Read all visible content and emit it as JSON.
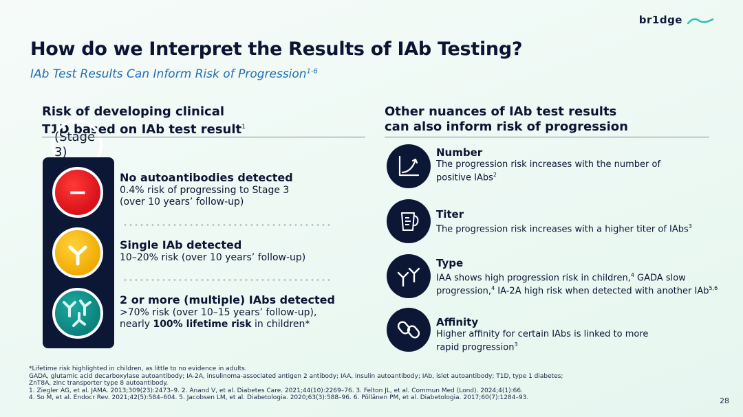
{
  "logo": {
    "text": "br1dge"
  },
  "title": "How do we Interpret the Results of IAb Testing?",
  "subtitle": {
    "text": "IAb Test Results Can Inform Risk of Progression",
    "sup": "1-6"
  },
  "left_heading": {
    "line1_bold": "Risk of developing clinical ",
    "line1_light": "(Stage 3)",
    "line2": "T1D based on IAb test result",
    "sup": "1"
  },
  "right_heading": {
    "line1": "Other nuances of IAb test results",
    "line2": "can also inform risk of progression"
  },
  "results": [
    {
      "title": "No autoantibodies detected",
      "line1": "0.4% risk of progressing to Stage 3",
      "line2": "(over 10 years’ follow-up)",
      "symbol": "−"
    },
    {
      "title": "Single IAb detected",
      "line1": "10–20% risk (over 10 years’ follow-up)"
    },
    {
      "title": "2 or more (multiple) IAbs detected",
      "line1": ">70% risk (over 10–15 years’ follow-up),",
      "line2_pre": "nearly ",
      "line2_bold": "100% lifetime risk",
      "line2_post": " in children*"
    }
  ],
  "nuances": [
    {
      "title": "Number",
      "line1": "The progression risk increases with the number of",
      "line2": "positive IAbs",
      "line2_sup": "2",
      "icon": "growth-chart-icon"
    },
    {
      "title": "Titer",
      "line1": "The progression risk increases with a higher titer of IAbs",
      "line1_sup": "3",
      "icon": "measuring-cup-icon"
    },
    {
      "title": "Type",
      "line1a": "IAA shows high progression risk in children,",
      "sup_a": "4",
      "line1b": " GADA slow",
      "line2a": "progression,",
      "sup_b": "4",
      "line2b": " IA-2A high risk when detected with another IAb",
      "sup_c": "5,6",
      "icon": "antibody-types-icon"
    },
    {
      "title": "Affinity",
      "line1": "Higher affinity for certain IAbs is linked to more",
      "line2": "rapid progression",
      "line2_sup": "3",
      "icon": "chain-link-icon"
    }
  ],
  "footnotes": [
    "*Lifetime risk highlighted in children, as little to no evidence in adults.",
    "GADA, glutamic acid decarboxylase autoantibody; IA-2A, insulinoma-associated antigen 2 antibody; IAA, insulin autoantibody; IAb, islet autoantibody; T1D, type 1 diabetes;",
    "ZnT8A, zinc transporter type 8 autoantibody.",
    "1. Ziegler AG, et al. JAMA. 2013;309(23):2473–9. 2. Anand V, et al. Diabetes Care. 2021;44(10):2269–76. 3. Felton JL, et al. Commun Med (Lond). 2024;4(1):66.",
    "4. So M, et al. Endocr Rev. 2021;42(5):584–604. 5. Jacobsen LM, et al. Diabetologia. 2020;63(3):588–96. 6. Pöllänen PM, et al. Diabetologia. 2017;60(7):1284–93."
  ],
  "page_number": "28",
  "colors": {
    "navy": "#0c1736",
    "accent_blue": "#1f6fb2",
    "red": "#d8101a",
    "yellow": "#f0a800",
    "teal": "#0a7f7a"
  }
}
